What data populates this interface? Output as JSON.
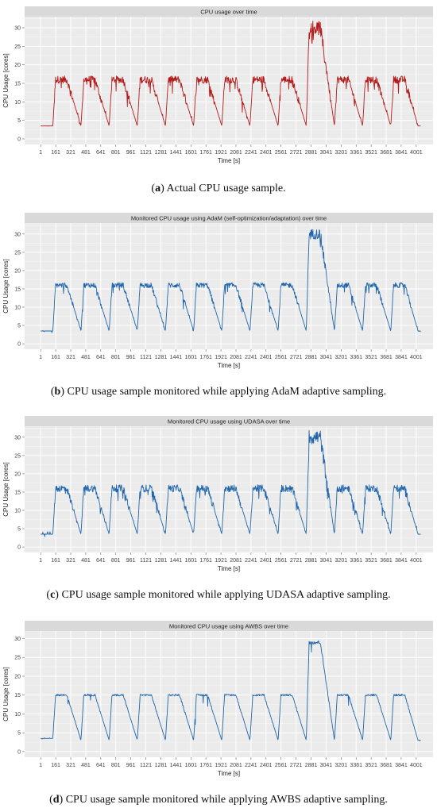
{
  "chart_data": [
    {
      "type": "line",
      "title": "CPU usage over time",
      "xlabel": "Time [s]",
      "ylabel": "CPU Usage [cores]",
      "color": "#b31b1b",
      "noise": "high",
      "peak_high": 17,
      "yticks": [
        0,
        5,
        10,
        15,
        20,
        25,
        30
      ],
      "ylim": [
        -1.5,
        33
      ],
      "xlim": [
        -170,
        4180
      ],
      "xticks": [
        1,
        161,
        321,
        481,
        641,
        801,
        961,
        1121,
        1281,
        1441,
        1601,
        1761,
        1921,
        2081,
        2241,
        2401,
        2561,
        2721,
        2881,
        3041,
        3201,
        3361,
        3521,
        3681,
        3841,
        4001
      ],
      "series": [
        {
          "x": [
            0,
            130,
            160,
            280,
            430,
            460,
            580,
            730,
            760,
            880,
            1030,
            1060,
            1180,
            1330,
            1360,
            1480,
            1630,
            1660,
            1780,
            1930,
            1960,
            2080,
            2230,
            2260,
            2380,
            2530,
            2560,
            2680,
            2830,
            2860,
            2980,
            3130,
            3160,
            3280,
            3430,
            3460,
            3580,
            3730,
            3760,
            3880,
            4020,
            4050
          ],
          "y": [
            3.5,
            3.5,
            16,
            16,
            3.5,
            16,
            16,
            3.5,
            16,
            16,
            3.5,
            16,
            16,
            3.5,
            16,
            16,
            3.5,
            16,
            16,
            3.5,
            16,
            16,
            3.5,
            16,
            16,
            3.5,
            16,
            16,
            3.5,
            30,
            30,
            3.5,
            16,
            16,
            3.5,
            16,
            16,
            3.5,
            16,
            16,
            3.5,
            3.5
          ]
        }
      ]
    },
    {
      "type": "line",
      "title": "Monitored CPU usage using AdaM (self-optimization/adaptation) over time",
      "xlabel": "Time [s]",
      "ylabel": "CPU Usage [cores]",
      "color": "#2166ac",
      "noise": "medium",
      "peak_high": 17,
      "yticks": [
        0,
        5,
        10,
        15,
        20,
        25,
        30
      ],
      "ylim": [
        -1.5,
        33
      ],
      "xlim": [
        -170,
        4180
      ],
      "xticks": [
        1,
        161,
        321,
        481,
        641,
        801,
        961,
        1121,
        1281,
        1441,
        1601,
        1761,
        1921,
        2081,
        2241,
        2401,
        2561,
        2721,
        2881,
        3041,
        3201,
        3361,
        3521,
        3681,
        3841,
        4001
      ],
      "series": [
        {
          "x": [
            0,
            130,
            160,
            280,
            430,
            460,
            580,
            730,
            760,
            880,
            1030,
            1060,
            1180,
            1330,
            1360,
            1480,
            1630,
            1660,
            1780,
            1930,
            1960,
            2080,
            2230,
            2260,
            2380,
            2530,
            2560,
            2680,
            2830,
            2860,
            2980,
            3130,
            3160,
            3280,
            3430,
            3460,
            3580,
            3730,
            3760,
            3880,
            4020,
            4050
          ],
          "y": [
            3.5,
            3.5,
            16,
            16,
            3.5,
            16,
            16,
            3.5,
            16,
            16,
            3.5,
            16,
            16,
            3.5,
            16,
            16,
            3.5,
            16,
            16,
            3.5,
            16,
            16,
            3.5,
            16,
            16,
            3.5,
            16,
            16,
            3.5,
            30,
            30,
            3.5,
            16,
            16,
            3.5,
            16,
            16,
            3.5,
            16,
            16,
            3.5,
            3.5
          ]
        }
      ]
    },
    {
      "type": "line",
      "title": "Monitored CPU usage using UDASA over time",
      "xlabel": "Time [s]",
      "ylabel": "CPU Usage [cores]",
      "color": "#2166ac",
      "noise": "high",
      "peak_high": 17,
      "yticks": [
        0,
        5,
        10,
        15,
        20,
        25,
        30
      ],
      "ylim": [
        -1.5,
        33
      ],
      "xlim": [
        -170,
        4180
      ],
      "xticks": [
        1,
        161,
        321,
        481,
        641,
        801,
        961,
        1121,
        1281,
        1441,
        1601,
        1761,
        1921,
        2081,
        2241,
        2401,
        2561,
        2721,
        2881,
        3041,
        3201,
        3361,
        3521,
        3681,
        3841,
        4001
      ],
      "series": [
        {
          "x": [
            0,
            130,
            160,
            280,
            430,
            460,
            580,
            730,
            760,
            880,
            1030,
            1060,
            1180,
            1330,
            1360,
            1480,
            1630,
            1660,
            1780,
            1930,
            1960,
            2080,
            2230,
            2260,
            2380,
            2530,
            2560,
            2680,
            2830,
            2860,
            2980,
            3130,
            3160,
            3280,
            3430,
            3460,
            3580,
            3730,
            3760,
            3880,
            4020,
            4050
          ],
          "y": [
            3.5,
            3.5,
            16,
            16,
            3.5,
            16,
            16,
            3.5,
            16,
            16,
            3.5,
            16,
            16,
            3.5,
            16,
            16,
            3.5,
            16,
            16,
            3.5,
            16,
            16,
            3.5,
            16,
            16,
            3.5,
            16,
            16,
            3.5,
            30,
            30,
            3.5,
            16,
            16,
            3.5,
            16,
            16,
            3.5,
            16,
            16,
            3.5,
            3.5
          ]
        }
      ]
    },
    {
      "type": "line",
      "title": "Monitored CPU usage using AWBS over time",
      "xlabel": "Time [s]",
      "ylabel": "CPU Usage [cores]",
      "color": "#2166ac",
      "noise": "low",
      "peak_high": 15.5,
      "yticks": [
        0,
        5,
        10,
        15,
        20,
        25,
        30
      ],
      "ylim": [
        -1.5,
        32
      ],
      "xlim": [
        -170,
        4180
      ],
      "xticks": [
        1,
        161,
        321,
        481,
        641,
        801,
        961,
        1121,
        1281,
        1441,
        1601,
        1761,
        1921,
        2081,
        2241,
        2401,
        2561,
        2721,
        2881,
        3041,
        3201,
        3361,
        3521,
        3681,
        3841,
        4001
      ],
      "series": [
        {
          "x": [
            0,
            130,
            160,
            280,
            430,
            460,
            580,
            730,
            760,
            880,
            1030,
            1060,
            1180,
            1330,
            1360,
            1480,
            1630,
            1660,
            1780,
            1930,
            1960,
            2080,
            2230,
            2260,
            2380,
            2530,
            2560,
            2680,
            2830,
            2860,
            2980,
            3130,
            3160,
            3280,
            3430,
            3460,
            3580,
            3730,
            3760,
            3880,
            4020,
            4050
          ],
          "y": [
            3.5,
            3.5,
            15,
            15,
            3,
            15,
            15,
            3,
            15,
            15,
            3,
            15,
            15,
            3,
            15,
            15,
            3,
            15,
            15,
            3,
            15,
            15,
            3,
            15,
            15,
            3,
            15,
            15,
            3,
            29,
            29,
            3,
            15,
            15,
            3,
            15,
            15,
            3,
            15,
            15,
            3,
            3
          ]
        }
      ]
    }
  ],
  "captions": [
    {
      "letter": "a",
      "text": " Actual CPU usage sample."
    },
    {
      "letter": "b",
      "text": " CPU usage sample monitored while applying AdaM adaptive sampling."
    },
    {
      "letter": "c",
      "text": " CPU usage sample monitored while applying UDASA adaptive sampling."
    },
    {
      "letter": "d",
      "text": " CPU usage sample monitored while applying AWBS adaptive sampling."
    }
  ]
}
